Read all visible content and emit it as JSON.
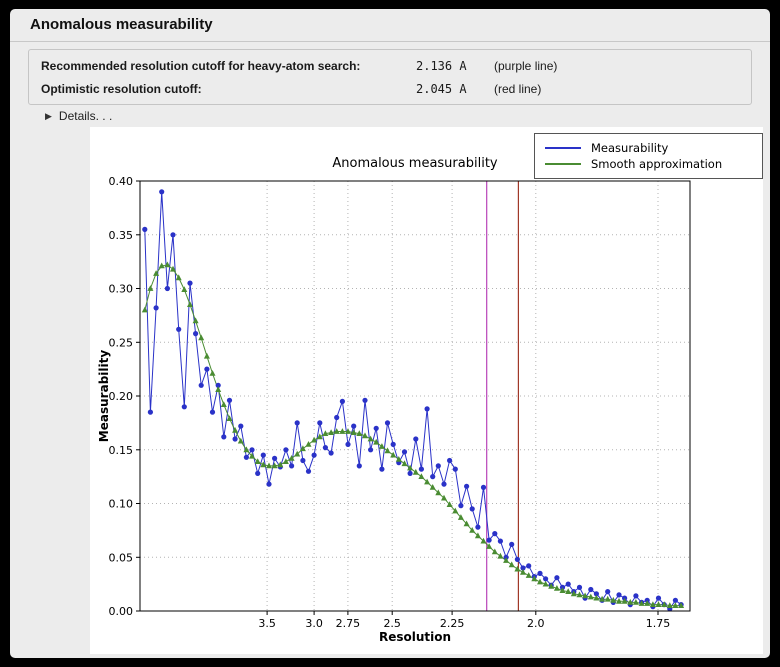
{
  "window": {
    "title": "Anomalous measurability"
  },
  "summary": {
    "rows": [
      {
        "label": "Recommended resolution cutoff for heavy-atom search:",
        "value": "2.136 A",
        "note": "(purple line)"
      },
      {
        "label": "Optimistic resolution cutoff:",
        "value": "2.045 A",
        "note": "(red line)"
      }
    ]
  },
  "details": {
    "arrow": "▶",
    "label": "Details. . ."
  },
  "chart_data": {
    "type": "line",
    "title": "Anomalous measurability",
    "xlabel": "Resolution",
    "ylabel": "Measurability",
    "x_axis_scale": "inverse_d_squared",
    "x_min": 0.002,
    "x_max": 0.3466,
    "ylim": [
      0.0,
      0.4
    ],
    "grid": true,
    "grid_color": "#b3b3b3",
    "legend_position": "top-right",
    "yticks": [
      {
        "label": "0.00",
        "value": 0.0
      },
      {
        "label": "0.05",
        "value": 0.05
      },
      {
        "label": "0.10",
        "value": 0.1
      },
      {
        "label": "0.15",
        "value": 0.15
      },
      {
        "label": "0.20",
        "value": 0.2
      },
      {
        "label": "0.25",
        "value": 0.25
      },
      {
        "label": "0.30",
        "value": 0.3
      },
      {
        "label": "0.35",
        "value": 0.35
      },
      {
        "label": "0.40",
        "value": 0.4
      }
    ],
    "xticks": [
      {
        "label": "3.5",
        "invdsq": 0.08163
      },
      {
        "label": "3.0",
        "invdsq": 0.11111
      },
      {
        "label": "2.75",
        "invdsq": 0.13223
      },
      {
        "label": "2.5",
        "invdsq": 0.16
      },
      {
        "label": "2.25",
        "invdsq": 0.19753
      },
      {
        "label": "2.0",
        "invdsq": 0.25
      },
      {
        "label": "1.75",
        "invdsq": 0.32653
      }
    ],
    "x_start": 0.005,
    "x_step": 0.003537,
    "n_points": 96,
    "series": [
      {
        "name": "Measurability",
        "color": "#2a32c8",
        "marker": "circle",
        "values": [
          0.355,
          0.185,
          0.282,
          0.39,
          0.3,
          0.35,
          0.262,
          0.19,
          0.305,
          0.258,
          0.21,
          0.225,
          0.185,
          0.21,
          0.162,
          0.196,
          0.16,
          0.172,
          0.143,
          0.15,
          0.128,
          0.145,
          0.118,
          0.142,
          0.134,
          0.15,
          0.135,
          0.175,
          0.14,
          0.13,
          0.145,
          0.175,
          0.152,
          0.147,
          0.18,
          0.195,
          0.155,
          0.172,
          0.135,
          0.196,
          0.15,
          0.17,
          0.132,
          0.175,
          0.155,
          0.138,
          0.148,
          0.128,
          0.16,
          0.132,
          0.188,
          0.125,
          0.135,
          0.118,
          0.14,
          0.132,
          0.098,
          0.116,
          0.095,
          0.078,
          0.115,
          0.066,
          0.072,
          0.065,
          0.05,
          0.062,
          0.048,
          0.04,
          0.042,
          0.032,
          0.035,
          0.03,
          0.024,
          0.031,
          0.022,
          0.025,
          0.018,
          0.022,
          0.012,
          0.02,
          0.016,
          0.01,
          0.018,
          0.008,
          0.015,
          0.012,
          0.006,
          0.014,
          0.008,
          0.01,
          0.004,
          0.012,
          0.006,
          0.002,
          0.01,
          0.006
        ]
      },
      {
        "name": "Smooth approximation",
        "color": "#4a8c32",
        "marker": "triangle",
        "values": [
          0.28,
          0.3,
          0.314,
          0.321,
          0.322,
          0.318,
          0.31,
          0.299,
          0.285,
          0.27,
          0.254,
          0.237,
          0.221,
          0.206,
          0.192,
          0.179,
          0.168,
          0.158,
          0.15,
          0.144,
          0.139,
          0.136,
          0.135,
          0.135,
          0.136,
          0.139,
          0.142,
          0.146,
          0.151,
          0.155,
          0.159,
          0.162,
          0.165,
          0.166,
          0.167,
          0.167,
          0.167,
          0.166,
          0.165,
          0.163,
          0.16,
          0.157,
          0.153,
          0.149,
          0.145,
          0.141,
          0.137,
          0.133,
          0.129,
          0.125,
          0.12,
          0.115,
          0.11,
          0.105,
          0.099,
          0.093,
          0.087,
          0.081,
          0.075,
          0.07,
          0.065,
          0.06,
          0.055,
          0.051,
          0.047,
          0.043,
          0.039,
          0.036,
          0.033,
          0.03,
          0.027,
          0.025,
          0.023,
          0.021,
          0.019,
          0.018,
          0.016,
          0.015,
          0.014,
          0.013,
          0.012,
          0.011,
          0.011,
          0.01,
          0.009,
          0.009,
          0.008,
          0.008,
          0.007,
          0.007,
          0.006,
          0.006,
          0.006,
          0.005,
          0.005,
          0.005
        ]
      }
    ],
    "vlines": [
      {
        "label": "purple line",
        "resolution": "2.136 A",
        "invdsq": 0.2192,
        "color": "#b844b8"
      },
      {
        "label": "red line",
        "resolution": "2.045 A",
        "invdsq": 0.2391,
        "color": "#a03828"
      }
    ]
  }
}
